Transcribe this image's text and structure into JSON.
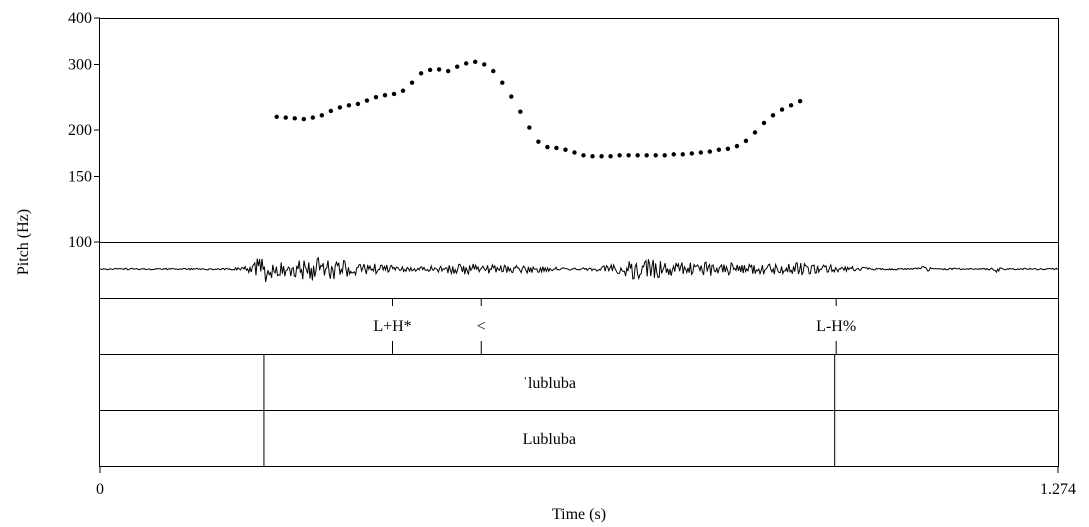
{
  "chart_data": {
    "type": "scatter",
    "title": "",
    "ylabel": "Pitch (Hz)",
    "xlabel": "Time (s)",
    "y_scale": "log",
    "ylim": [
      100,
      400
    ],
    "xlim": [
      0,
      1.274
    ],
    "y_ticks": [
      100,
      150,
      200,
      300,
      400
    ],
    "y_tick_labels": [
      "100",
      "150",
      "200",
      "300",
      "400"
    ],
    "x_tick_labels": [
      "0",
      "1.274"
    ],
    "grid": false,
    "series": [
      {
        "values": [
          [
            0.235,
            217
          ],
          [
            0.247,
            216
          ],
          [
            0.259,
            215
          ],
          [
            0.271,
            214
          ],
          [
            0.283,
            216
          ],
          [
            0.295,
            219
          ],
          [
            0.307,
            225
          ],
          [
            0.319,
            230
          ],
          [
            0.331,
            233
          ],
          [
            0.343,
            235
          ],
          [
            0.355,
            240
          ],
          [
            0.367,
            245
          ],
          [
            0.379,
            248
          ],
          [
            0.391,
            250
          ],
          [
            0.403,
            255
          ],
          [
            0.415,
            268
          ],
          [
            0.427,
            284
          ],
          [
            0.439,
            290
          ],
          [
            0.451,
            291
          ],
          [
            0.463,
            288
          ],
          [
            0.475,
            296
          ],
          [
            0.487,
            302
          ],
          [
            0.499,
            305
          ],
          [
            0.511,
            300
          ],
          [
            0.523,
            288
          ],
          [
            0.535,
            268
          ],
          [
            0.547,
            246
          ],
          [
            0.559,
            224
          ],
          [
            0.571,
            203
          ],
          [
            0.583,
            186
          ],
          [
            0.595,
            180
          ],
          [
            0.607,
            179
          ],
          [
            0.619,
            177
          ],
          [
            0.631,
            174
          ],
          [
            0.643,
            171
          ],
          [
            0.655,
            170
          ],
          [
            0.667,
            170
          ],
          [
            0.679,
            170
          ],
          [
            0.691,
            171
          ],
          [
            0.703,
            171
          ],
          [
            0.715,
            171
          ],
          [
            0.727,
            171
          ],
          [
            0.739,
            171
          ],
          [
            0.751,
            171
          ],
          [
            0.763,
            172
          ],
          [
            0.775,
            172
          ],
          [
            0.787,
            173
          ],
          [
            0.799,
            174
          ],
          [
            0.811,
            175
          ],
          [
            0.823,
            177
          ],
          [
            0.835,
            178
          ],
          [
            0.847,
            181
          ],
          [
            0.859,
            187
          ],
          [
            0.871,
            197
          ],
          [
            0.883,
            209
          ],
          [
            0.895,
            219
          ],
          [
            0.907,
            227
          ],
          [
            0.919,
            233
          ],
          [
            0.931,
            239
          ]
        ]
      }
    ],
    "tiers": [
      {
        "type": "point",
        "items": [
          {
            "t": 0.389,
            "label": "L+H*"
          },
          {
            "t": 0.507,
            "label": "<"
          },
          {
            "t": 0.979,
            "label": "L-H%"
          }
        ]
      },
      {
        "type": "interval",
        "boundaries": [
          0.218,
          0.977
        ],
        "label": "ˈlubluba"
      },
      {
        "type": "interval",
        "boundaries": [
          0.218,
          0.977
        ],
        "label": "Lubluba"
      }
    ]
  }
}
